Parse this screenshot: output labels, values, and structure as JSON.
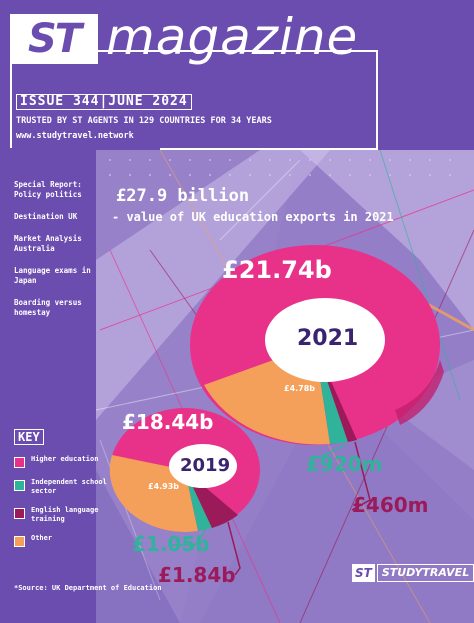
{
  "masthead": {
    "logo": "ST",
    "title": "magazine",
    "issue": "ISSUE 344|JUNE 2024",
    "trusted": "TRUSTED BY ST AGENTS IN 129 COUNTRIES FOR 34 YEARS",
    "website": "www.studytravel.network"
  },
  "contents": [
    "Special Report: Policy politics",
    "Destination UK",
    "Market Analysis Australia",
    "Language exams in Japan",
    "Boarding versus homestay"
  ],
  "headline": {
    "title": "£27.9 billion",
    "subtitle": "- value of UK education exports in 2021"
  },
  "key": {
    "title": "KEY",
    "items": [
      {
        "label": "Higher education",
        "color": "#e8328a"
      },
      {
        "label": "Independent school sector",
        "color": "#2fb39a"
      },
      {
        "label": "English language training",
        "color": "#9b1a5a"
      },
      {
        "label": "Other",
        "color": "#f5a05a"
      }
    ]
  },
  "source": "*Source: UK Department of Education",
  "chart_data": [
    {
      "type": "pie",
      "title": "2021",
      "categories": [
        "Higher education",
        "Other",
        "Independent school sector",
        "English language training"
      ],
      "values": [
        21.74,
        4.78,
        0.92,
        0.46
      ],
      "labels": [
        "£21.74b",
        "£4.78b",
        "£920m",
        "£460m"
      ]
    },
    {
      "type": "pie",
      "title": "2019",
      "categories": [
        "Higher education",
        "Other",
        "Independent school sector",
        "English language training"
      ],
      "values": [
        18.44,
        4.93,
        1.05,
        1.84
      ],
      "labels": [
        "£18.44b",
        "£4.93b",
        "£1.05b",
        "£1.84b"
      ]
    }
  ],
  "brand": {
    "mark": "ST",
    "name": "STUDYTRAVEL"
  }
}
